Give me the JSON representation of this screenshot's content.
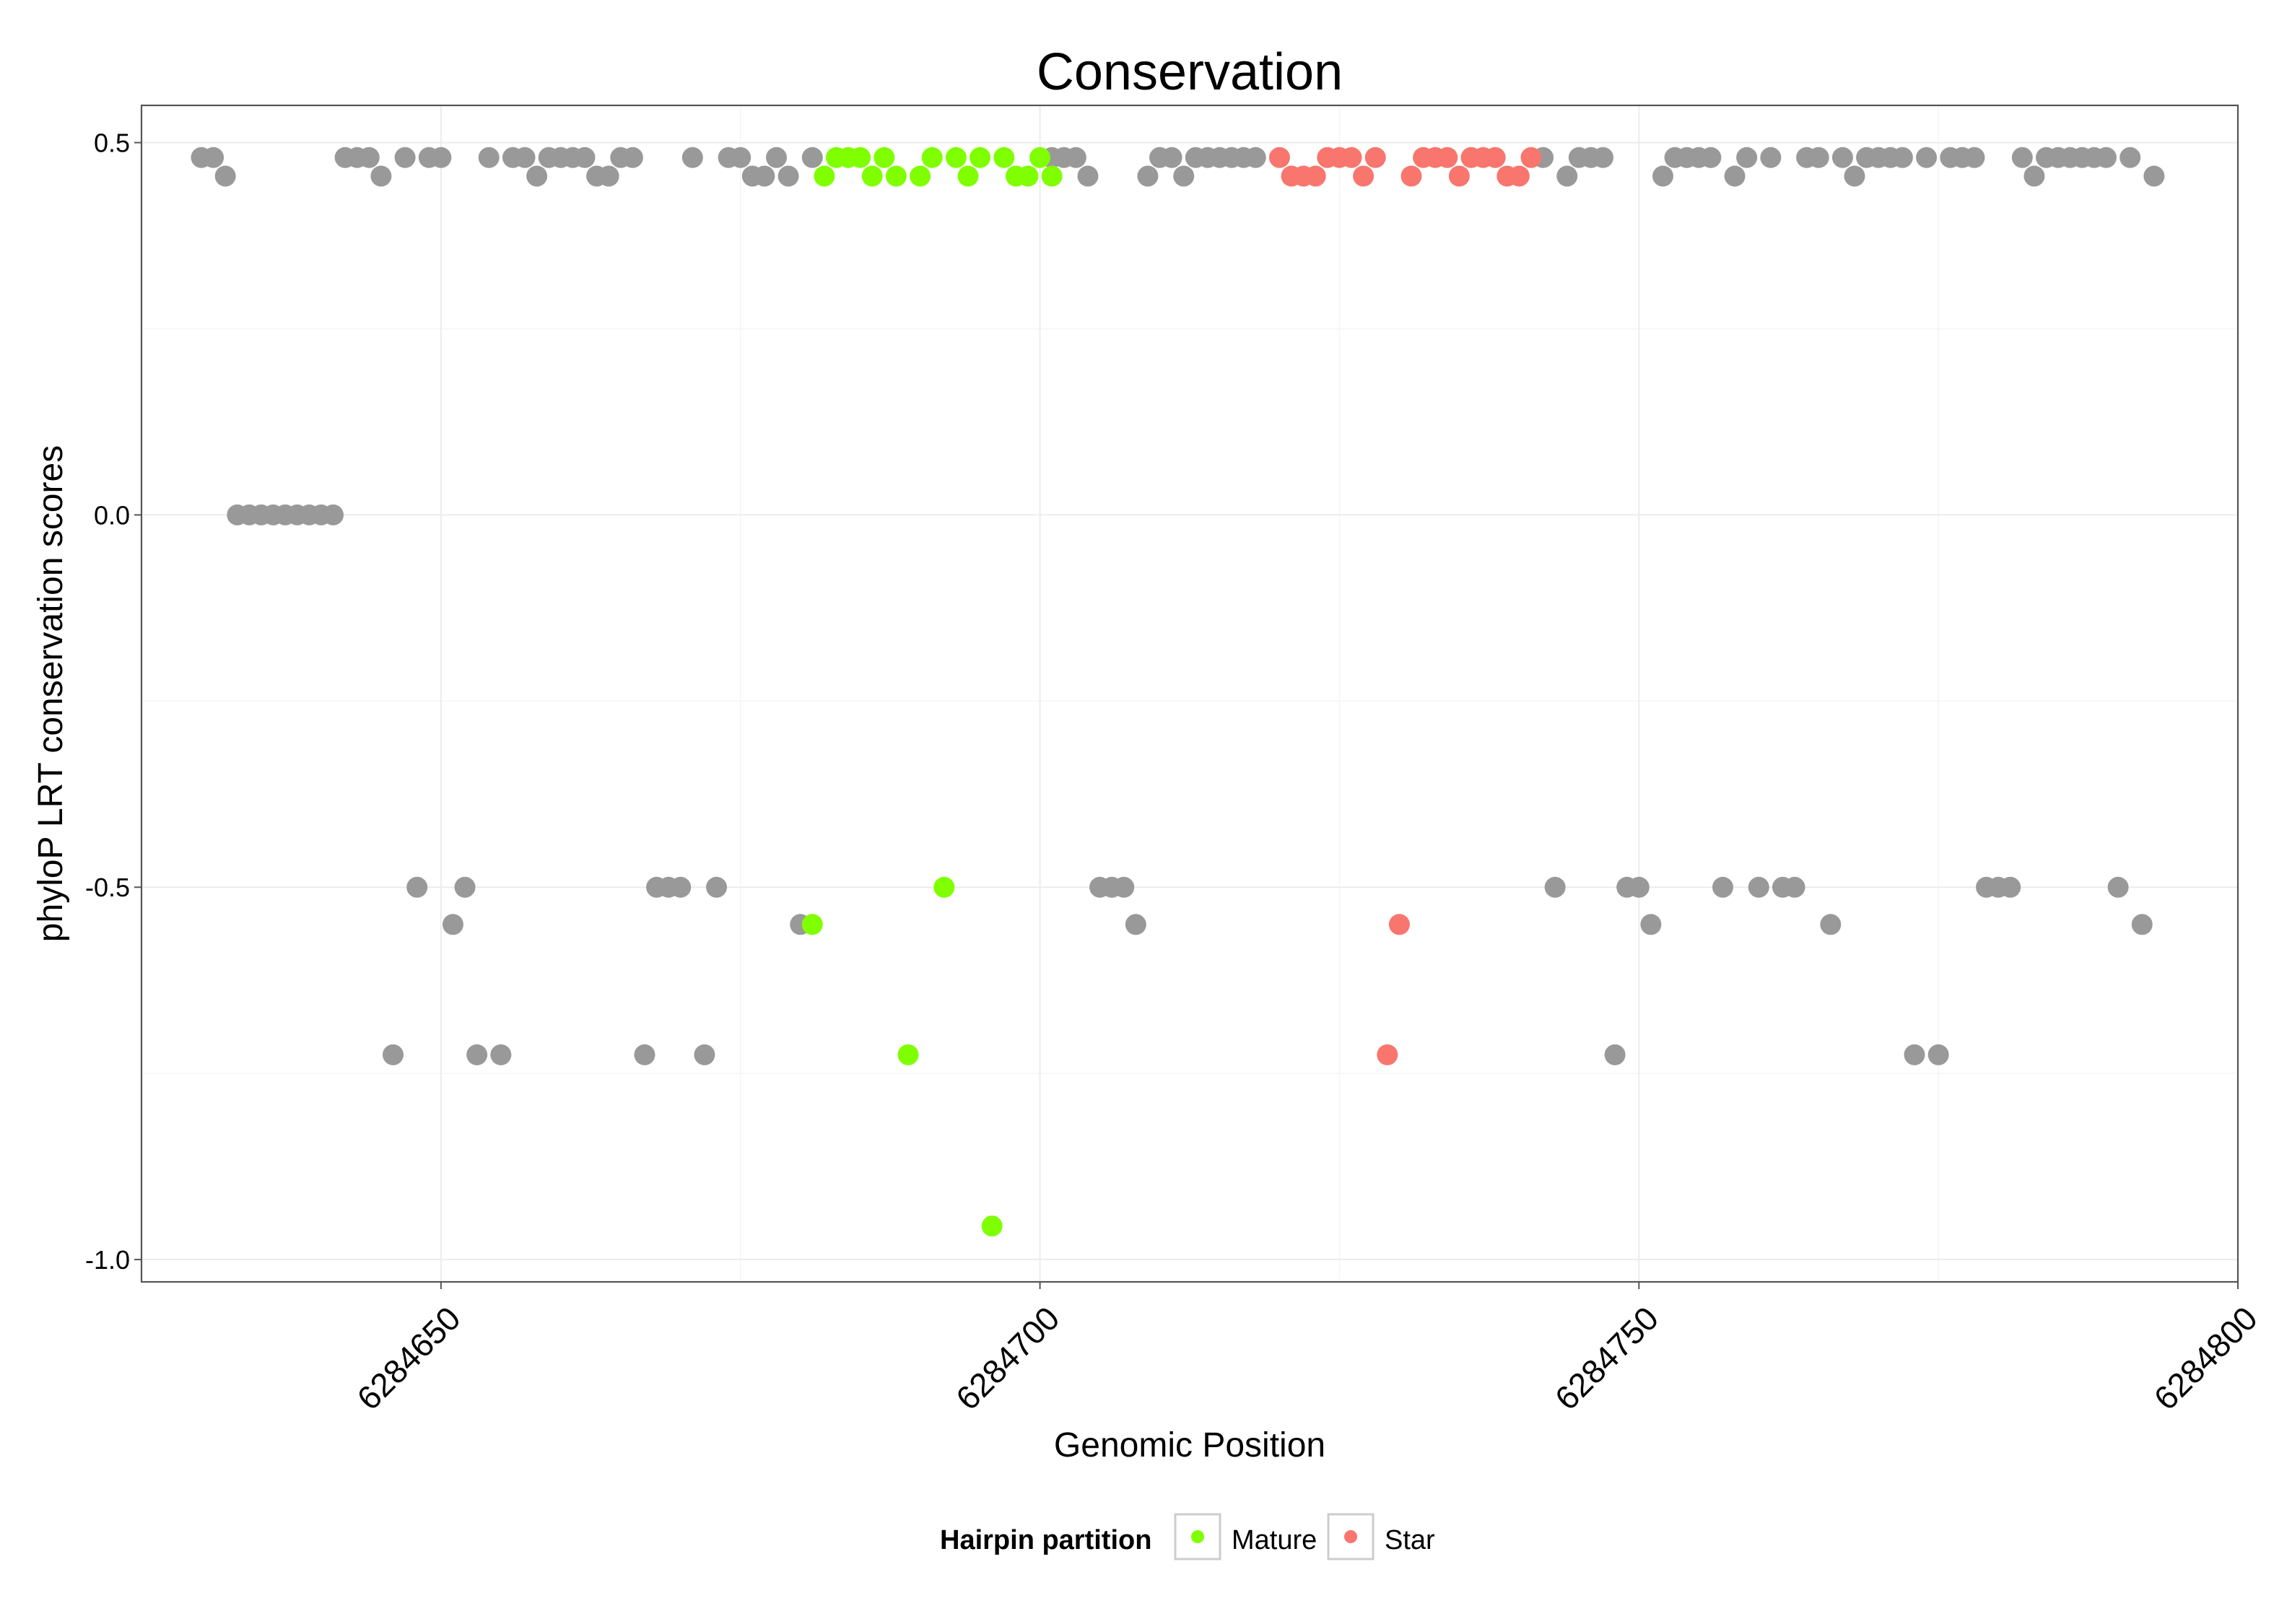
{
  "chart_data": {
    "type": "scatter",
    "title": "Conservation",
    "xlabel": "Genomic Position",
    "ylabel": "phyloP LRT conservation scores",
    "xlim": [
      6284625,
      6284800
    ],
    "ylim": [
      -1.03,
      0.55
    ],
    "x_ticks": [
      6284650,
      6284700,
      6284750,
      6284800
    ],
    "x_tick_labels": [
      "6284650",
      "6284700",
      "6284750",
      "6284800"
    ],
    "y_ticks": [
      0.5,
      0.0,
      -0.5,
      -1.0
    ],
    "y_tick_labels": [
      "0.5",
      "0.0",
      "-0.5",
      "-1.0"
    ],
    "grid": true,
    "legend": {
      "position": "bottom",
      "title": "Hairpin partition",
      "entries": [
        {
          "label": "Mature",
          "color": "#7FFF00"
        },
        {
          "label": "Star",
          "color": "#F8766D"
        }
      ]
    },
    "colors": {
      "other": "#999999",
      "Mature": "#7FFF00",
      "Star": "#F8766D"
    },
    "series": [
      {
        "group": "other",
        "x": [
          6284630,
          6284631,
          6284632,
          6284633,
          6284634,
          6284635,
          6284636,
          6284637,
          6284638,
          6284639,
          6284640,
          6284641,
          6284642,
          6284643,
          6284644,
          6284645,
          6284646,
          6284647,
          6284648,
          6284649,
          6284650,
          6284651,
          6284652,
          6284653,
          6284654,
          6284655,
          6284656,
          6284657,
          6284658,
          6284659,
          6284660,
          6284661,
          6284662,
          6284663,
          6284664,
          6284665,
          6284666,
          6284667,
          6284668,
          6284669,
          6284670,
          6284671,
          6284672,
          6284673,
          6284674,
          6284675,
          6284676,
          6284677,
          6284678,
          6284679,
          6284680,
          6284681,
          6284701,
          6284702,
          6284703,
          6284704,
          6284705,
          6284706,
          6284707,
          6284708,
          6284709,
          6284710,
          6284711,
          6284712,
          6284713,
          6284714,
          6284715,
          6284716,
          6284717,
          6284718,
          6284742,
          6284743,
          6284744,
          6284745,
          6284746,
          6284747,
          6284748,
          6284749,
          6284750,
          6284751,
          6284752,
          6284753,
          6284754,
          6284755,
          6284756,
          6284757,
          6284758,
          6284759,
          6284760,
          6284761,
          6284762,
          6284763,
          6284764,
          6284765,
          6284766,
          6284767,
          6284768,
          6284769,
          6284770,
          6284771,
          6284772,
          6284773,
          6284774,
          6284775,
          6284776,
          6284777,
          6284778,
          6284779,
          6284780,
          6284781,
          6284782,
          6284783,
          6284784,
          6284785,
          6284786,
          6284787,
          6284788,
          6284789,
          6284790,
          6284791,
          6284792,
          6284793
        ],
        "y": [
          0.48,
          0.48,
          0.455,
          0,
          0,
          0,
          0,
          0,
          0,
          0,
          0,
          0,
          0.48,
          0.48,
          0.48,
          0.455,
          -0.725,
          0.48,
          -0.5,
          0.48,
          0.48,
          -0.55,
          -0.5,
          -0.725,
          0.48,
          -0.725,
          0.48,
          0.48,
          0.455,
          0.48,
          0.48,
          0.48,
          0.48,
          0.455,
          0.455,
          0.48,
          0.48,
          -0.725,
          -0.5,
          -0.5,
          -0.5,
          0.48,
          -0.725,
          -0.5,
          0.48,
          0.48,
          0.455,
          0.455,
          0.48,
          0.455,
          -0.55,
          0.48,
          0.48,
          0.48,
          0.48,
          0.455,
          -0.5,
          -0.5,
          -0.5,
          -0.55,
          0.455,
          0.48,
          0.48,
          0.455,
          0.48,
          0.48,
          0.48,
          0.48,
          0.48,
          0.48,
          0.48,
          -0.5,
          0.455,
          0.48,
          0.48,
          0.48,
          -0.725,
          -0.5,
          -0.5,
          -0.55,
          0.455,
          0.48,
          0.48,
          0.48,
          0.48,
          -0.5,
          0.455,
          0.48,
          -0.5,
          0.48,
          -0.5,
          -0.5,
          0.48,
          0.48,
          -0.55,
          0.48,
          0.455,
          0.48,
          0.48,
          0.48,
          0.48,
          -0.725,
          0.48,
          -0.725,
          0.48,
          0.48,
          0.48,
          -0.5,
          -0.5,
          -0.5,
          0.48,
          0.455,
          0.48,
          0.48,
          0.48,
          0.48,
          0.48,
          0.48,
          -0.5,
          0.48,
          -0.55,
          0.455
        ]
      },
      {
        "group": "Mature",
        "name": "Mature",
        "x": [
          6284681,
          6284682,
          6284683,
          6284684,
          6284685,
          6284686,
          6284687,
          6284688,
          6284689,
          6284690,
          6284691,
          6284692,
          6284693,
          6284694,
          6284695,
          6284696,
          6284697,
          6284698,
          6284699,
          6284700,
          6284701
        ],
        "y": [
          -0.55,
          0.455,
          0.48,
          0.48,
          0.48,
          0.455,
          0.48,
          0.455,
          -0.725,
          0.455,
          0.48,
          -0.5,
          0.48,
          0.455,
          0.48,
          -0.955,
          0.48,
          0.455,
          0.455,
          0.48,
          0.455
        ]
      },
      {
        "group": "Star",
        "name": "Star",
        "x": [
          6284720,
          6284721,
          6284722,
          6284723,
          6284724,
          6284725,
          6284726,
          6284727,
          6284728,
          6284729,
          6284730,
          6284731,
          6284732,
          6284733,
          6284734,
          6284735,
          6284736,
          6284737,
          6284738,
          6284739,
          6284740,
          6284741
        ],
        "y": [
          0.48,
          0.455,
          0.455,
          0.455,
          0.48,
          0.48,
          0.48,
          0.455,
          0.48,
          -0.725,
          -0.55,
          0.455,
          0.48,
          0.48,
          0.48,
          0.455,
          0.48,
          0.48,
          0.48,
          0.455,
          0.455,
          0.48
        ]
      }
    ]
  }
}
